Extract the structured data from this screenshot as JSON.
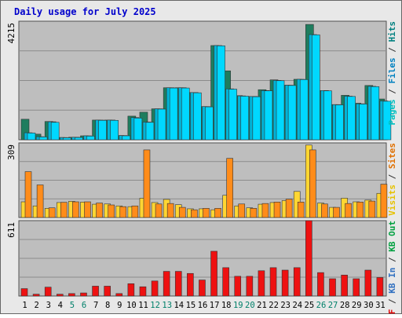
{
  "chart_data": {
    "type": "bar",
    "title": "Daily usage for July 2025",
    "categories": [
      "1",
      "2",
      "3",
      "4",
      "5",
      "6",
      "7",
      "8",
      "9",
      "10",
      "11",
      "12",
      "13",
      "14",
      "15",
      "16",
      "17",
      "18",
      "19",
      "20",
      "21",
      "22",
      "23",
      "24",
      "25",
      "26",
      "27",
      "28",
      "29",
      "30",
      "31"
    ],
    "weekend_days": [
      "5",
      "6",
      "12",
      "13",
      "19",
      "20",
      "26",
      "27"
    ],
    "panels": [
      {
        "id": "hits",
        "ymax": 4215,
        "ymax_label": "4215",
        "right_label": [
          {
            "text": "Pages",
            "color": "#00c0c0"
          },
          {
            "text": " / ",
            "color": "#333333"
          },
          {
            "text": "Files",
            "color": "#0080c0"
          },
          {
            "text": " / ",
            "color": "#333333"
          },
          {
            "text": "Hits",
            "color": "#008080"
          }
        ],
        "series": [
          {
            "name": "Hits",
            "color": "#1e7d5e",
            "values": [
              730,
              200,
              650,
              80,
              90,
              140,
              700,
              700,
              150,
              840,
              980,
              1100,
              1850,
              1850,
              1680,
              1180,
              3350,
              2450,
              1570,
              1540,
              1780,
              2130,
              1940,
              2150,
              4100,
              1750,
              1250,
              1580,
              1300,
              1930,
              1450
            ]
          },
          {
            "name": "Files",
            "color": "#00b4d8",
            "values": [
              250,
              110,
              640,
              80,
              90,
              140,
              700,
              700,
              150,
              790,
              630,
              1100,
              1850,
              1850,
              1680,
              1180,
              3350,
              1810,
              1560,
              1540,
              1750,
              2110,
              1940,
              2150,
              3740,
              1750,
              1250,
              1550,
              1280,
              1900,
              1380
            ]
          },
          {
            "name": "Pages",
            "color": "#00d8ff",
            "values": [
              240,
              100,
              620,
              70,
              80,
              130,
              690,
              690,
              140,
              770,
              620,
              1090,
              1840,
              1840,
              1670,
              1170,
              3340,
              1800,
              1550,
              1530,
              1740,
              2100,
              1930,
              2140,
              3730,
              1740,
              1240,
              1540,
              1270,
              1890,
              1370
            ]
          }
        ]
      },
      {
        "id": "visits",
        "ymax": 309,
        "ymax_label": "309",
        "right_label": [
          {
            "text": "Visits",
            "color": "#e6c200"
          },
          {
            "text": " / ",
            "color": "#333333"
          },
          {
            "text": "Sites",
            "color": "#e07000"
          }
        ],
        "series": [
          {
            "name": "Visits",
            "color": "#ffd633",
            "values": [
              65,
              48,
              38,
              62,
              67,
              64,
              55,
              56,
              48,
              45,
              80,
              62,
              75,
              53,
              36,
              36,
              32,
              92,
              48,
              40,
              55,
              62,
              70,
              108,
              300,
              60,
              42,
              80,
              65,
              72,
              100
            ]
          },
          {
            "name": "Sites",
            "color": "#ff8c1a",
            "values": [
              190,
              135,
              40,
              63,
              65,
              65,
              60,
              52,
              45,
              48,
              280,
              56,
              58,
              42,
              32,
              38,
              38,
              245,
              56,
              38,
              58,
              64,
              76,
              64,
              280,
              56,
              42,
              58,
              64,
              68,
              138
            ]
          }
        ]
      },
      {
        "id": "traffic",
        "ymax": 611,
        "ymax_label": "611",
        "right_label": [
          {
            "text": "KB F",
            "color": "#e00000"
          },
          {
            "text": " / ",
            "color": "#333333"
          },
          {
            "text": "KB In",
            "color": "#3070c0"
          },
          {
            "text": " / ",
            "color": "#333333"
          },
          {
            "text": "KB Out",
            "color": "#00a040"
          }
        ],
        "series": [
          {
            "name": "KB F",
            "color": "#ee1111",
            "values": [
              60,
              15,
              72,
              15,
              20,
              25,
              80,
              80,
              20,
              100,
              75,
              122,
              200,
              200,
              183,
              130,
              363,
              230,
              160,
              160,
              205,
              230,
              210,
              230,
              615,
              190,
              140,
              170,
              140,
              210,
              150
            ]
          }
        ]
      }
    ]
  }
}
